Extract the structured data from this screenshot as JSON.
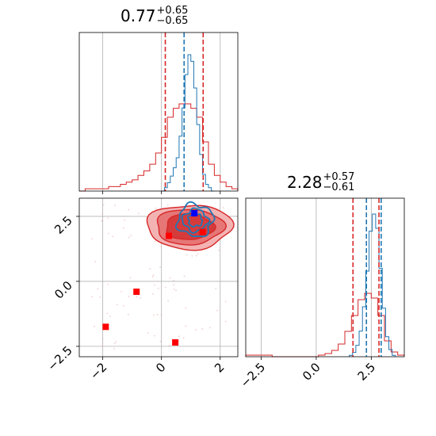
{
  "chart_data": [
    {
      "type": "histogram",
      "panel": "top-left marginal",
      "title": {
        "main": "0.77",
        "upper": "+0.65",
        "lower": "−0.65"
      },
      "xlim": [
        -2.8,
        2.6
      ],
      "grid": true,
      "series": [
        {
          "name": "red",
          "color": "#d62728",
          "bins": [
            -2.8,
            -2.6,
            -2.4,
            -2.2,
            -2.0,
            -1.8,
            -1.6,
            -1.4,
            -1.2,
            -1.0,
            -0.8,
            -0.6,
            -0.4,
            -0.2,
            0.0,
            0.2,
            0.4,
            0.6,
            0.8,
            1.0,
            1.2,
            1.4,
            1.6,
            1.8,
            2.0,
            2.2,
            2.4,
            2.6
          ],
          "counts": [
            0,
            1,
            1,
            1,
            1,
            2,
            2,
            3,
            4,
            5,
            7,
            9,
            12,
            17,
            24,
            33,
            37,
            39,
            39,
            37,
            33,
            22,
            12,
            7,
            4,
            2,
            1
          ]
        },
        {
          "name": "blue",
          "color": "#1f77b4",
          "bins": [
            0.0,
            0.1,
            0.2,
            0.3,
            0.4,
            0.5,
            0.6,
            0.7,
            0.8,
            0.9,
            1.0,
            1.1,
            1.2,
            1.3,
            1.4,
            1.5,
            1.6,
            1.7,
            1.8
          ],
          "counts": [
            0,
            2,
            5,
            9,
            14,
            20,
            33,
            50,
            70,
            82,
            78,
            62,
            40,
            22,
            10,
            4,
            2,
            0
          ]
        }
      ],
      "vlines": [
        {
          "x": 0.13,
          "color": "#d62728"
        },
        {
          "x": 0.77,
          "color": "#1f77b4"
        },
        {
          "x": 1.42,
          "color": "#d62728"
        }
      ]
    },
    {
      "type": "histogram",
      "panel": "bottom-right marginal",
      "title": {
        "main": "2.28",
        "upper": "+0.57",
        "lower": "−0.61"
      },
      "xlim": [
        -3.2,
        4.0
      ],
      "xticks": [
        "−2.5",
        "0.0",
        "2.5"
      ],
      "xtick_values": [
        -2.5,
        0.0,
        2.5
      ],
      "grid": true,
      "series": [
        {
          "name": "red",
          "color": "#d62728",
          "bins": [
            -3.2,
            -2.9,
            -2.6,
            -2.3,
            -2.0,
            -1.7,
            -1.4,
            -1.1,
            -0.8,
            -0.5,
            -0.2,
            0.1,
            0.4,
            0.7,
            1.0,
            1.3,
            1.6,
            1.9,
            2.2,
            2.5,
            2.8,
            3.1,
            3.4,
            3.7,
            4.0
          ],
          "counts": [
            1,
            1,
            1,
            1,
            0,
            0,
            0,
            0,
            0,
            0,
            0,
            1,
            2,
            4,
            8,
            16,
            26,
            36,
            40,
            37,
            26,
            10,
            3,
            1
          ]
        },
        {
          "name": "blue",
          "color": "#1f77b4",
          "bins": [
            1.5,
            1.65,
            1.8,
            1.95,
            2.1,
            2.25,
            2.4,
            2.55,
            2.7,
            2.85,
            3.0,
            3.15,
            3.3,
            3.45,
            3.6
          ],
          "counts": [
            1,
            3,
            8,
            18,
            35,
            60,
            88,
            100,
            90,
            62,
            34,
            14,
            5,
            1
          ]
        }
      ],
      "vlines": [
        {
          "x": 1.67,
          "color": "#d62728"
        },
        {
          "x": 2.28,
          "color": "#1f77b4"
        },
        {
          "x": 2.85,
          "color": "#d62728"
        },
        {
          "x": 2.95,
          "color": "#1f77b4"
        }
      ]
    },
    {
      "type": "contour-scatter",
      "panel": "bottom-left joint",
      "xlim": [
        -2.8,
        2.6
      ],
      "ylim": [
        -2.9,
        3.2
      ],
      "xticks": [
        "−2",
        "0",
        "2"
      ],
      "xtick_values": [
        -2,
        0,
        2
      ],
      "yticks": [
        "−2.5",
        "0.0",
        "2.5"
      ],
      "ytick_values": [
        -2.5,
        0.0,
        2.5
      ],
      "grid": true,
      "red_markers": [
        {
          "x": -1.9,
          "y": -1.75
        },
        {
          "x": -0.85,
          "y": -0.4
        },
        {
          "x": 0.47,
          "y": -2.35
        },
        {
          "x": 0.25,
          "y": 1.75
        },
        {
          "x": 1.4,
          "y": 1.9
        }
      ],
      "blue_markers": [
        {
          "x": 1.12,
          "y": 2.62
        }
      ]
    }
  ]
}
